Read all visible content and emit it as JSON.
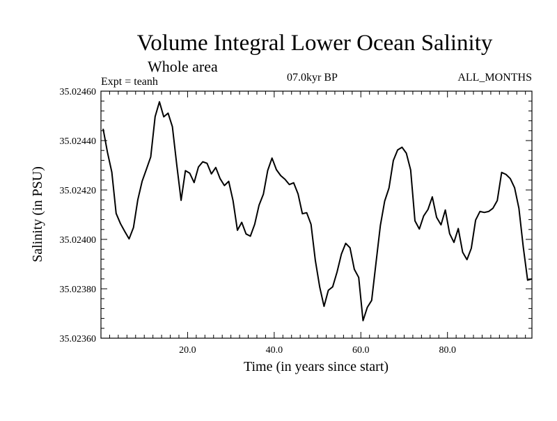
{
  "chart_data": {
    "type": "line",
    "title": "Volume Integral Lower Ocean Salinity",
    "subtitle": "Whole area",
    "experiment": "Expt = teanh",
    "period": "07.0kyr BP",
    "months": "ALL_MONTHS",
    "xlabel": "Time (in years since start)",
    "ylabel": "Salinity (in PSU)",
    "xlim": [
      0,
      99.5
    ],
    "ylim": [
      35.0236,
      35.0246
    ],
    "xticks": [
      {
        "value": 20,
        "label": "20.0"
      },
      {
        "value": 40,
        "label": "40.0"
      },
      {
        "value": 60,
        "label": "60.0"
      },
      {
        "value": 80,
        "label": "80.0"
      }
    ],
    "yticks": [
      {
        "value": 35.0236,
        "label": "35.02360"
      },
      {
        "value": 35.0238,
        "label": "35.02380"
      },
      {
        "value": 35.024,
        "label": "35.02400"
      },
      {
        "value": 35.0242,
        "label": "35.02420"
      },
      {
        "value": 35.0244,
        "label": "35.02440"
      },
      {
        "value": 35.0246,
        "label": "35.02460"
      }
    ],
    "series": [
      {
        "name": "Salinity",
        "x": [
          0.5,
          1.5,
          2.5,
          3.5,
          4.5,
          5.5,
          6.5,
          7.5,
          8.5,
          9.5,
          10.5,
          11.5,
          12.5,
          13.5,
          14.5,
          15.5,
          16.5,
          17.5,
          18.5,
          19.5,
          20.5,
          21.5,
          22.5,
          23.5,
          24.5,
          25.5,
          26.5,
          27.5,
          28.5,
          29.5,
          30.5,
          31.5,
          32.5,
          33.5,
          34.5,
          35.5,
          36.5,
          37.5,
          38.5,
          39.5,
          40.5,
          41.5,
          42.5,
          43.5,
          44.5,
          45.5,
          46.5,
          47.5,
          48.5,
          49.5,
          50.5,
          51.5,
          52.5,
          53.5,
          54.5,
          55.5,
          56.5,
          57.5,
          58.5,
          59.5,
          60.5,
          61.5,
          62.5,
          63.5,
          64.5,
          65.5,
          66.5,
          67.5,
          68.5,
          69.5,
          70.5,
          71.5,
          72.5,
          73.5,
          74.5,
          75.5,
          76.5,
          77.5,
          78.5,
          79.5,
          80.5,
          81.5,
          82.5,
          83.5,
          84.5,
          85.5,
          86.5,
          87.5,
          88.5,
          89.5,
          90.5,
          91.5,
          92.5,
          93.5,
          94.5,
          95.5,
          96.5,
          97.5,
          98.5,
          99.5
        ],
        "values": [
          35.024448,
          35.024353,
          35.024272,
          35.024105,
          35.024064,
          35.024032,
          35.024002,
          35.024048,
          35.02416,
          35.024235,
          35.024284,
          35.024334,
          35.024497,
          35.024557,
          35.024496,
          35.024511,
          35.024456,
          35.024301,
          35.024158,
          35.024278,
          35.024268,
          35.02423,
          35.024293,
          35.024314,
          35.024308,
          35.024265,
          35.024291,
          35.024246,
          35.024218,
          35.024235,
          35.024157,
          35.024037,
          35.024069,
          35.024022,
          35.024013,
          35.024061,
          35.024139,
          35.024183,
          35.024279,
          35.024329,
          35.024282,
          35.024258,
          35.024243,
          35.024222,
          35.024229,
          35.024184,
          35.024104,
          35.024108,
          35.024061,
          35.023915,
          35.023807,
          35.023729,
          35.023794,
          35.023808,
          35.023868,
          35.02394,
          35.023984,
          35.023966,
          35.023879,
          35.023846,
          35.023671,
          35.023725,
          35.023753,
          35.023904,
          35.024056,
          35.024155,
          35.024208,
          35.024319,
          35.024362,
          35.024373,
          35.024349,
          35.024281,
          35.024075,
          35.024042,
          35.024095,
          35.024121,
          35.024172,
          35.024089,
          35.024059,
          35.024119,
          35.024023,
          35.023988,
          35.024044,
          35.023948,
          35.023918,
          35.023964,
          35.024078,
          35.024113,
          35.024109,
          35.024113,
          35.024126,
          35.024157,
          35.024271,
          35.024263,
          35.024246,
          35.024209,
          35.024126,
          35.023968,
          35.023835,
          35.02384
        ]
      }
    ]
  }
}
